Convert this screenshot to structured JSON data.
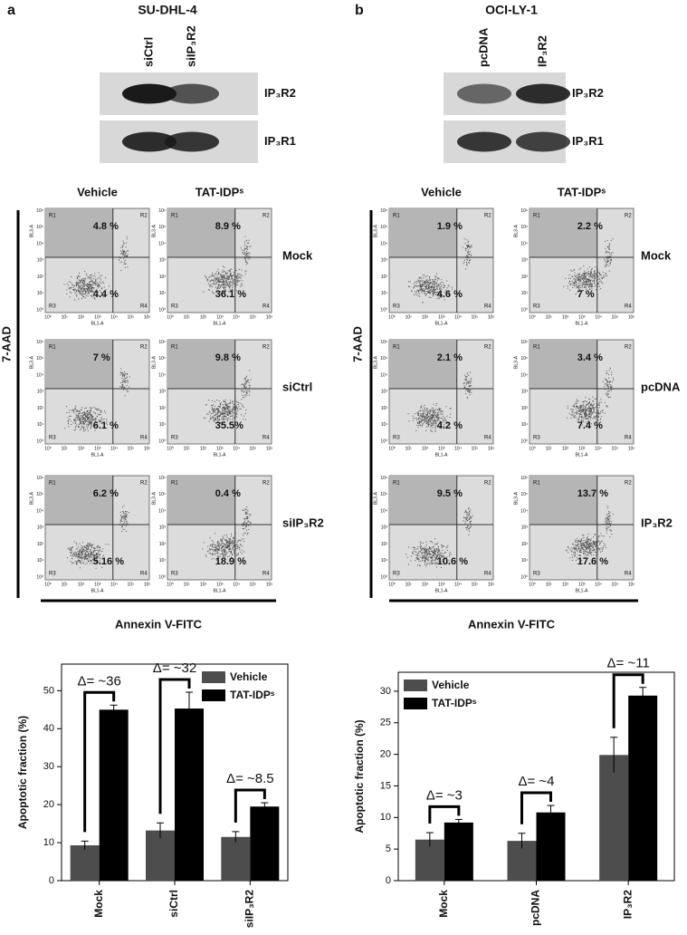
{
  "figure": {
    "flow_axes": {
      "x_label": "BL1-A",
      "y_label": "BL3-A",
      "quadrants": [
        "R1",
        "R2",
        "R3",
        "R4"
      ],
      "ticks": [
        "10⁰",
        "10¹",
        "10²",
        "10³",
        "10⁴",
        "10⁵",
        "10⁶"
      ]
    },
    "panels": [
      {
        "letter": "a",
        "title": "SU-DHL-4",
        "lanes": [
          "siCtrl",
          "siIP₃R2"
        ],
        "bands": [
          "IP₃R2",
          "IP₃R1"
        ],
        "columns": [
          "Vehicle",
          "TAT-IDPˢ"
        ],
        "rows": [
          {
            "label": "Mock",
            "plots": [
              {
                "upper": "4.8 %",
                "lower": "4.4 %"
              },
              {
                "upper": "8.9 %",
                "lower": "36.1 %"
              }
            ]
          },
          {
            "label": "siCtrl",
            "plots": [
              {
                "upper": "7 %",
                "lower": "6.1 %"
              },
              {
                "upper": "9.8 %",
                "lower": "35.5%"
              }
            ]
          },
          {
            "label": "siIP₃R2",
            "plots": [
              {
                "upper": "6.2 %",
                "lower": "5.16 %"
              },
              {
                "upper": "0.4 %",
                "lower": "18.9 %"
              }
            ]
          }
        ],
        "y_label": "7-AAD",
        "x_label": "Annexin V-FITC"
      },
      {
        "letter": "b",
        "title": "OCI-LY-1",
        "lanes": [
          "pcDNA",
          "IP₃R2"
        ],
        "bands": [
          "IP₃R2",
          "IP₃R1"
        ],
        "columns": [
          "Vehicle",
          "TAT-IDPˢ"
        ],
        "rows": [
          {
            "label": "Mock",
            "plots": [
              {
                "upper": "1.9 %",
                "lower": "4.6 %"
              },
              {
                "upper": "2.2 %",
                "lower": "7 %"
              }
            ]
          },
          {
            "label": "pcDNA",
            "plots": [
              {
                "upper": "2.1 %",
                "lower": "4.2 %"
              },
              {
                "upper": "3.4 %",
                "lower": "7.4 %"
              }
            ]
          },
          {
            "label": "IP₃R2",
            "plots": [
              {
                "upper": "9.5 %",
                "lower": "10.6 %"
              },
              {
                "upper": "13.7 %",
                "lower": "17.6 %"
              }
            ]
          }
        ],
        "y_label": "7-AAD",
        "x_label": "Annexin V-FITC"
      }
    ]
  },
  "chart_data": [
    {
      "type": "bar",
      "categories": [
        "Mock",
        "siCtrl",
        "siIP₃R2"
      ],
      "y_label": "Apoptotic fraction  (%)",
      "series": [
        {
          "name": "Vehicle",
          "color": "#4d4d4d",
          "values": [
            9.3,
            13.2,
            11.5
          ],
          "errors": [
            1.1,
            2,
            1.4
          ]
        },
        {
          "name": "TAT-IDPˢ",
          "color": "#000000",
          "values": [
            45,
            45.3,
            19.5
          ],
          "errors": [
            1.2,
            4.3,
            1
          ]
        }
      ],
      "annotations": [
        "Δ= ~36",
        "Δ= ~32",
        "Δ= ~8.5"
      ],
      "ylim": [
        0,
        57
      ],
      "yticks": [
        0,
        10,
        20,
        30,
        40,
        50
      ],
      "legend": "upper right"
    },
    {
      "type": "bar",
      "categories": [
        "Mock",
        "pcDNA",
        "IP₃R2"
      ],
      "y_label": "Apoptotic fraction  (%)",
      "series": [
        {
          "name": "Vehicle",
          "color": "#4d4d4d",
          "values": [
            6.5,
            6.3,
            19.9
          ],
          "errors": [
            1.1,
            1.2,
            2.8
          ]
        },
        {
          "name": "TAT-IDPˢ",
          "color": "#000000",
          "values": [
            9.2,
            10.8,
            29.3
          ],
          "errors": [
            0.5,
            1.1,
            1.3
          ]
        }
      ],
      "annotations": [
        "Δ= ~3",
        "Δ= ~4",
        "Δ= ~11"
      ],
      "ylim": [
        0,
        33
      ],
      "yticks": [
        0,
        5,
        10,
        15,
        20,
        25,
        30
      ],
      "legend": "upper left"
    }
  ]
}
